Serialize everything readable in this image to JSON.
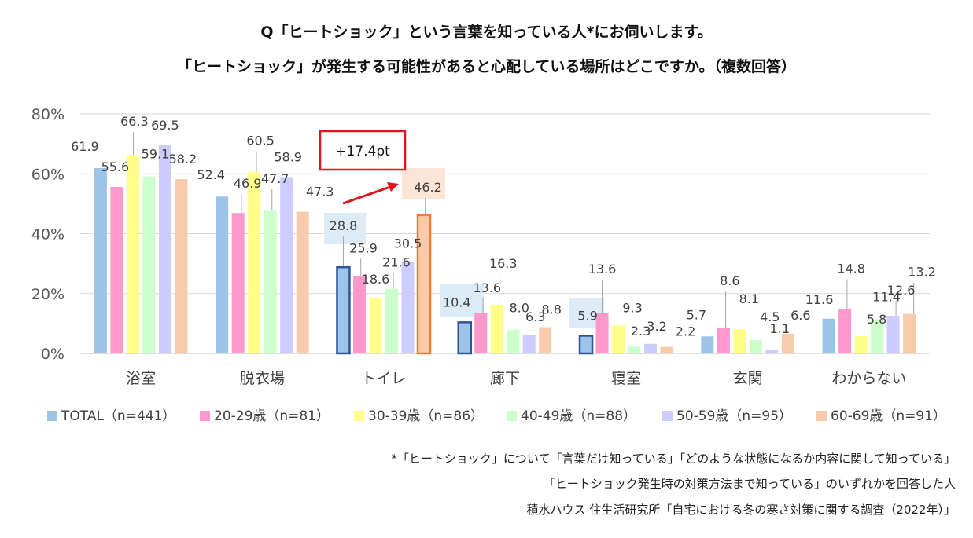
{
  "title_line1": "Q「ヒートショック」という言葉を知っている人*にお伺いします。",
  "title_line2": "「ヒートショック」が発生する可能性があると心配している場所はどこですか。（複数回答）",
  "chart_data": {
    "type": "bar",
    "categories": [
      "浴室",
      "脱衣場",
      "トイレ",
      "廊下",
      "寝室",
      "玄関",
      "わからない"
    ],
    "series": [
      {
        "name": "TOTAL（n=441）",
        "color": "#9DC3E6",
        "values": [
          61.9,
          52.4,
          28.8,
          10.4,
          5.9,
          5.7,
          11.6
        ]
      },
      {
        "name": "20-29歳（n=81）",
        "color": "#FF99CC",
        "values": [
          55.6,
          46.9,
          25.9,
          13.6,
          13.6,
          8.6,
          14.8
        ]
      },
      {
        "name": "30-39歳（n=86）",
        "color": "#FFFF88",
        "values": [
          66.3,
          60.5,
          18.6,
          16.3,
          9.3,
          8.1,
          5.8
        ]
      },
      {
        "name": "40-49歳（n=88）",
        "color": "#CCFFCC",
        "values": [
          59.1,
          47.7,
          21.6,
          8.0,
          2.3,
          4.5,
          11.4
        ]
      },
      {
        "name": "50-59歳（n=95）",
        "color": "#CCCCFF",
        "values": [
          69.5,
          58.9,
          30.5,
          6.3,
          3.2,
          1.1,
          12.6
        ]
      },
      {
        "name": "60-69歳（n=91）",
        "color": "#F8CBAD",
        "values": [
          58.2,
          47.3,
          46.2,
          8.8,
          2.2,
          6.6,
          13.2
        ]
      }
    ],
    "y_ticks": [
      "0%",
      "20%",
      "40%",
      "60%",
      "80%"
    ],
    "ylim": [
      0,
      80
    ],
    "grid": true,
    "legend_position": "bottom",
    "annotation": "+17.4pt",
    "accent_color": "#E0141E",
    "highlight_outline_color": "#2F5597",
    "highlight_orange_outline_color": "#ED7D31"
  },
  "notes": {
    "line1": "*「ヒートショック」について「言葉だけ知っている」「どのような状態になるか内容に関して知っている」",
    "line2": "「ヒートショック発生時の対策方法まで知っている」のいずれかを回答した人",
    "line3": "積水ハウス 住生活研究所「自宅における冬の寒さ対策に関する調査（2022年）」"
  }
}
